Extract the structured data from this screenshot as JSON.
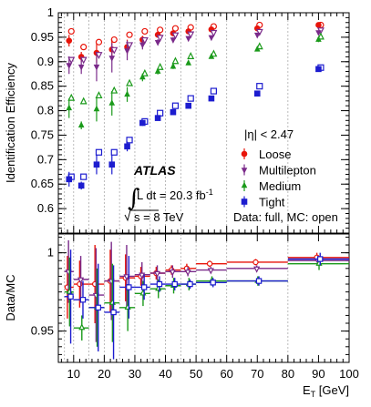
{
  "chart_data": [
    {
      "type": "scatter",
      "panel": "top",
      "ylabel": "Identification Efficiency",
      "ylim": [
        0.55,
        1.0
      ],
      "xlim": [
        5,
        100
      ],
      "yticks": [
        "0.6",
        "0.65",
        "0.7",
        "0.75",
        "0.8",
        "0.85",
        "0.9",
        "0.95",
        "1"
      ],
      "bin_edges": [
        7,
        10,
        15,
        20,
        25,
        30,
        35,
        40,
        45,
        50,
        60,
        80
      ],
      "experiment": "ATLAS",
      "lumi_label": "L dt = 20.3 fb",
      "lumi_sup": "-1",
      "energy_label": "s = 8 TeV",
      "eta_label": "|η| < 2.47",
      "data_mc_note": "Data: full, MC: open",
      "series": [
        {
          "name": "Loose",
          "color": "#e8140a",
          "marker": "circle",
          "x": [
            8.5,
            12.5,
            17.5,
            22.5,
            27.5,
            32.5,
            37.5,
            42.5,
            47.5,
            55,
            70,
            90
          ],
          "data": [
            0.943,
            0.91,
            0.918,
            0.925,
            0.93,
            0.945,
            0.955,
            0.958,
            0.962,
            0.966,
            0.968,
            0.975
          ],
          "err": [
            0.012,
            0.01,
            0.02,
            0.02,
            0.015,
            0.008,
            0.005,
            0.004,
            0.003,
            0.002,
            0.002,
            0.003
          ],
          "mc": [
            0.962,
            0.93,
            0.94,
            0.945,
            0.955,
            0.962,
            0.965,
            0.968,
            0.97,
            0.972,
            0.975,
            0.975
          ]
        },
        {
          "name": "Multilepton",
          "color": "#7a2a8a",
          "marker": "triangle-down",
          "x": [
            8.5,
            12.5,
            17.5,
            22.5,
            27.5,
            32.5,
            37.5,
            42.5,
            47.5,
            55,
            70,
            90
          ],
          "data": [
            0.893,
            0.89,
            0.89,
            0.908,
            0.923,
            0.935,
            0.94,
            0.945,
            0.948,
            0.95,
            0.955,
            0.96
          ],
          "err": [
            0.018,
            0.015,
            0.03,
            0.03,
            0.02,
            0.01,
            0.006,
            0.005,
            0.004,
            0.003,
            0.003,
            0.004
          ],
          "mc": [
            0.905,
            0.905,
            0.915,
            0.925,
            0.935,
            0.945,
            0.95,
            0.955,
            0.957,
            0.96,
            0.962,
            0.965
          ]
        },
        {
          "name": "Medium",
          "color": "#1a9a1a",
          "marker": "triangle-up",
          "x": [
            8.5,
            12.5,
            17.5,
            22.5,
            27.5,
            32.5,
            37.5,
            42.5,
            47.5,
            55,
            70,
            90
          ],
          "data": [
            0.805,
            0.77,
            0.803,
            0.815,
            0.833,
            0.868,
            0.88,
            0.89,
            0.897,
            0.91,
            0.925,
            0.945
          ],
          "err": [
            0.02,
            0.008,
            0.025,
            0.025,
            0.015,
            0.008,
            0.006,
            0.005,
            0.004,
            0.003,
            0.003,
            0.005
          ],
          "mc": [
            0.825,
            0.818,
            0.83,
            0.84,
            0.855,
            0.875,
            0.888,
            0.9,
            0.91,
            0.915,
            0.93,
            0.95
          ]
        },
        {
          "name": "Tight",
          "color": "#1c1ccf",
          "marker": "square",
          "x": [
            8.5,
            12.5,
            17.5,
            22.5,
            27.5,
            32.5,
            37.5,
            42.5,
            47.5,
            55,
            70,
            90
          ],
          "data": [
            0.66,
            0.647,
            0.69,
            0.69,
            0.727,
            0.775,
            0.785,
            0.797,
            0.81,
            0.825,
            0.835,
            0.885
          ],
          "err": [
            0.015,
            0.008,
            0.02,
            0.02,
            0.01,
            0.006,
            0.004,
            0.004,
            0.003,
            0.003,
            0.003,
            0.004
          ],
          "mc": [
            0.665,
            0.665,
            0.715,
            0.715,
            0.74,
            0.778,
            0.795,
            0.81,
            0.825,
            0.84,
            0.85,
            0.888
          ]
        }
      ]
    },
    {
      "type": "scatter",
      "panel": "bottom",
      "ylabel": "Data/MC",
      "xlabel": "E",
      "xlabel_sub": "T",
      "xlabel_unit": " [GeV]",
      "ylim": [
        0.93,
        1.012
      ],
      "xlim": [
        5,
        100
      ],
      "xticks": [
        "10",
        "20",
        "30",
        "40",
        "50",
        "60",
        "70",
        "80",
        "90",
        "100"
      ],
      "xtick_values": [
        10,
        20,
        30,
        40,
        50,
        60,
        70,
        80,
        90,
        100
      ],
      "yticks": [
        "0.95",
        "1"
      ],
      "ytick_values": [
        0.95,
        1.0
      ],
      "series": [
        {
          "name": "Loose",
          "color": "#e8140a",
          "x": [
            8.5,
            12.5,
            17.5,
            22.5,
            27.5,
            32.5,
            37.5,
            42.5,
            47.5,
            55,
            70,
            90
          ],
          "xerr": [
            1.5,
            2.5,
            2.5,
            2.5,
            2.5,
            2.5,
            2.5,
            2.5,
            2.5,
            5,
            10,
            10
          ],
          "y": [
            0.978,
            0.98,
            0.98,
            0.982,
            0.984,
            0.985,
            0.987,
            0.989,
            0.99,
            0.993,
            0.994,
            0.997
          ],
          "err": [
            0.02,
            0.015,
            0.025,
            0.02,
            0.015,
            0.006,
            0.004,
            0.003,
            0.003,
            0.002,
            0.002,
            0.003
          ]
        },
        {
          "name": "Multilepton",
          "color": "#7a2a8a",
          "x": [
            8.5,
            12.5,
            17.5,
            22.5,
            27.5,
            32.5,
            37.5,
            42.5,
            47.5,
            55,
            70,
            90
          ],
          "xerr": [
            1.5,
            2.5,
            2.5,
            2.5,
            2.5,
            2.5,
            2.5,
            2.5,
            2.5,
            5,
            10,
            10
          ],
          "y": [
            0.988,
            0.983,
            0.973,
            0.982,
            0.985,
            0.986,
            0.987,
            0.988,
            0.988,
            0.989,
            0.99,
            0.995
          ],
          "err": [
            0.02,
            0.015,
            0.03,
            0.025,
            0.02,
            0.008,
            0.005,
            0.004,
            0.003,
            0.002,
            0.002,
            0.003
          ]
        },
        {
          "name": "Medium",
          "color": "#1a9a1a",
          "x": [
            8.5,
            12.5,
            17.5,
            22.5,
            27.5,
            32.5,
            37.5,
            42.5,
            47.5,
            55,
            70,
            90
          ],
          "xerr": [
            1.5,
            2.5,
            2.5,
            2.5,
            2.5,
            2.5,
            2.5,
            2.5,
            2.5,
            5,
            10,
            10
          ],
          "y": [
            0.975,
            0.952,
            0.965,
            0.968,
            0.965,
            0.974,
            0.977,
            0.979,
            0.98,
            0.982,
            0.982,
            0.993
          ],
          "err": [
            0.022,
            0.008,
            0.025,
            0.025,
            0.015,
            0.008,
            0.006,
            0.005,
            0.004,
            0.003,
            0.003,
            0.004
          ]
        },
        {
          "name": "Tight",
          "color": "#1c1ccf",
          "x": [
            8.5,
            12.5,
            17.5,
            22.5,
            27.5,
            32.5,
            37.5,
            42.5,
            47.5,
            55,
            70,
            90
          ],
          "xerr": [
            1.5,
            2.5,
            2.5,
            2.5,
            2.5,
            2.5,
            2.5,
            2.5,
            2.5,
            5,
            10,
            10
          ],
          "y": [
            0.972,
            0.97,
            0.965,
            0.962,
            0.978,
            0.978,
            0.98,
            0.98,
            0.98,
            0.981,
            0.982,
            0.996
          ],
          "err": [
            0.03,
            0.012,
            0.028,
            0.03,
            0.02,
            0.008,
            0.005,
            0.004,
            0.003,
            0.003,
            0.003,
            0.004
          ]
        }
      ]
    }
  ]
}
